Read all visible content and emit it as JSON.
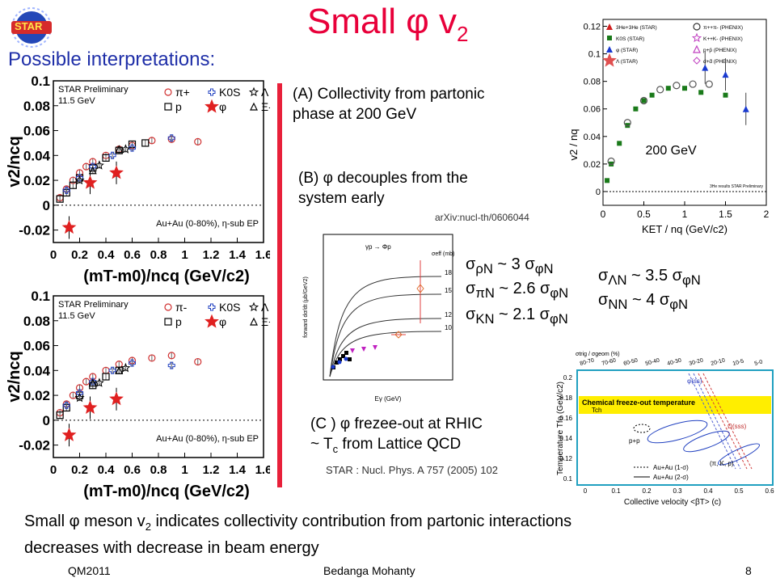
{
  "slide": {
    "title_main": "Small ",
    "title_phi": "φ",
    "title_v": " v",
    "title_sub": "2",
    "subtitle": "Possible interpretations:",
    "logo_text": "STAR"
  },
  "interpretations": {
    "a_line1": "(A) Collectivity from partonic",
    "a_line2": "phase at 200 GeV",
    "b_line1": "(B) φ decouples from the",
    "b_line2": "system early",
    "b_ref": "arXiv:nucl-th/0606044",
    "c_line1": "(C ) φ  frezee-out at RHIC",
    "c_line2_pre": "~ T",
    "c_line2_sub": "c",
    "c_line2_post": " from Lattice QCD",
    "c_ref": "STAR : Nucl. Phys. A 757 (2005) 102"
  },
  "cross_sections": {
    "rho": "σ",
    "rho_sub": "ρN",
    "rho_rest": " ~ 3 ",
    "pi_sub": "πN",
    "pi_rest": " ~ 2.6 ",
    "k_sub": "KN",
    "k_rest": " ~ 2.1 ",
    "phi_sub": "φN",
    "lam_sub": "ΛN",
    "lam_rest": " ~ 3.5 ",
    "nn_sub": "NN",
    "nn_rest": " ~ 4 "
  },
  "conclusion": {
    "line1_pre": "Small φ meson v",
    "line1_sub": "2",
    "line1_post": " indicates collectivity contribution from partonic interactions",
    "line2": "decreases with decrease in beam energy"
  },
  "footer": {
    "left": "QM2011",
    "center": "Bedanga Mohanty",
    "page": "8"
  },
  "chart_data": [
    {
      "type": "scatter",
      "ylabel": "v2/ncq",
      "xlabel": "(mT-m0)/ncq  (GeV/c2)",
      "xlim": [
        0,
        1.6
      ],
      "ylim": [
        -0.03,
        0.1
      ],
      "x_ticks": [
        "0",
        "0.2",
        "0.4",
        "0.6",
        "0.8",
        "1",
        "1.2",
        "1.4",
        "1.6"
      ],
      "y_ticks": [
        "0.1",
        "0.08",
        "0.06",
        "0.04",
        "0.02",
        "0",
        "-0.02"
      ],
      "texts": [
        "STAR Preliminary",
        "11.5 GeV",
        "Au+Au (0-80%), η-sub EP"
      ],
      "legend": [
        "π+",
        "K0S",
        "Λ",
        "p",
        "φ",
        "Ξ-"
      ],
      "series": [
        {
          "name": "π+",
          "values": [
            [
              0.05,
              0.006
            ],
            [
              0.1,
              0.013
            ],
            [
              0.15,
              0.02
            ],
            [
              0.2,
              0.026
            ],
            [
              0.25,
              0.031
            ],
            [
              0.3,
              0.035
            ],
            [
              0.4,
              0.04
            ],
            [
              0.5,
              0.045
            ],
            [
              0.6,
              0.048
            ],
            [
              0.75,
              0.052
            ],
            [
              0.9,
              0.053
            ],
            [
              1.1,
              0.051
            ]
          ]
        },
        {
          "name": "p",
          "values": [
            [
              0.05,
              0.005
            ],
            [
              0.1,
              0.01
            ],
            [
              0.15,
              0.016
            ],
            [
              0.2,
              0.022
            ],
            [
              0.3,
              0.03
            ],
            [
              0.4,
              0.038
            ],
            [
              0.5,
              0.044
            ],
            [
              0.6,
              0.049
            ],
            [
              0.7,
              0.05
            ]
          ]
        },
        {
          "name": "K0S",
          "values": [
            [
              0.1,
              0.012
            ],
            [
              0.2,
              0.022
            ],
            [
              0.3,
              0.031
            ],
            [
              0.45,
              0.04
            ],
            [
              0.6,
              0.046
            ],
            [
              0.9,
              0.054
            ]
          ]
        },
        {
          "name": "φ",
          "values": [
            [
              0.12,
              -0.018
            ],
            [
              0.28,
              0.018
            ],
            [
              0.48,
              0.026
            ]
          ]
        },
        {
          "name": "Λ",
          "values": [
            [
              0.2,
              0.02
            ],
            [
              0.35,
              0.032
            ],
            [
              0.55,
              0.045
            ]
          ]
        },
        {
          "name": "Ξ-",
          "values": [
            [
              0.3,
              0.028
            ],
            [
              0.5,
              0.045
            ]
          ]
        }
      ]
    },
    {
      "type": "scatter",
      "ylabel": "v2/ncq",
      "xlabel": "(mT-m0)/ncq  (GeV/c2)",
      "xlim": [
        0,
        1.6
      ],
      "ylim": [
        -0.03,
        0.1
      ],
      "x_ticks": [
        "0",
        "0.2",
        "0.4",
        "0.6",
        "0.8",
        "1",
        "1.2",
        "1.4",
        "1.6"
      ],
      "y_ticks": [
        "0.1",
        "0.08",
        "0.06",
        "0.04",
        "0.02",
        "0",
        "-0.02"
      ],
      "texts": [
        "STAR Preliminary",
        "11.5 GeV",
        "Au+Au (0-80%), η-sub EP"
      ],
      "legend": [
        "π-",
        "K0S",
        "Λ",
        "p",
        "φ",
        "Ξ+"
      ],
      "series": [
        {
          "name": "π-",
          "values": [
            [
              0.05,
              0.006
            ],
            [
              0.1,
              0.013
            ],
            [
              0.15,
              0.02
            ],
            [
              0.2,
              0.026
            ],
            [
              0.25,
              0.031
            ],
            [
              0.3,
              0.035
            ],
            [
              0.4,
              0.04
            ],
            [
              0.5,
              0.045
            ],
            [
              0.6,
              0.048
            ],
            [
              0.75,
              0.05
            ],
            [
              0.9,
              0.052
            ],
            [
              1.1,
              0.047
            ]
          ]
        },
        {
          "name": "p",
          "values": [
            [
              0.05,
              0.004
            ],
            [
              0.1,
              0.01
            ],
            [
              0.2,
              0.02
            ],
            [
              0.3,
              0.028
            ],
            [
              0.4,
              0.035
            ],
            [
              0.5,
              0.04
            ]
          ]
        },
        {
          "name": "K0S",
          "values": [
            [
              0.1,
              0.012
            ],
            [
              0.2,
              0.022
            ],
            [
              0.3,
              0.031
            ],
            [
              0.45,
              0.04
            ],
            [
              0.6,
              0.046
            ],
            [
              0.9,
              0.044
            ]
          ]
        },
        {
          "name": "φ",
          "values": [
            [
              0.12,
              -0.012
            ],
            [
              0.28,
              0.01
            ],
            [
              0.48,
              0.017
            ]
          ]
        },
        {
          "name": "Λ",
          "values": [
            [
              0.2,
              0.018
            ],
            [
              0.35,
              0.03
            ],
            [
              0.55,
              0.042
            ]
          ]
        },
        {
          "name": "Ξ+",
          "values": [
            [
              0.3,
              0.03
            ],
            [
              0.5,
              0.04
            ]
          ]
        }
      ]
    },
    {
      "type": "scatter",
      "ylabel": "v2 / nq",
      "xlabel": "KET / nq (GeV/c2)",
      "xlim": [
        0,
        2
      ],
      "ylim": [
        -0.01,
        0.125
      ],
      "x_ticks": [
        "0",
        "0.5",
        "1",
        "1.5",
        "2"
      ],
      "y_ticks": [
        "0",
        "0.02",
        "0.04",
        "0.06",
        "0.08",
        "0.1",
        "0.12"
      ],
      "texts": [
        "200 GeV",
        "3He results STAR Preliminary"
      ],
      "legend": [
        "3He+3He (STAR)",
        "K0S (STAR)",
        "φ (STAR)",
        "Λ (STAR)",
        "π++π- (PHENIX)",
        "K++K- (PHENIX)",
        "p+p̄ (PHENIX)",
        "d+d̄ (PHENIX)"
      ],
      "series": [
        {
          "name": "STAR",
          "values": [
            [
              0.05,
              0.008
            ],
            [
              0.1,
              0.02
            ],
            [
              0.2,
              0.035
            ],
            [
              0.3,
              0.048
            ],
            [
              0.4,
              0.06
            ],
            [
              0.5,
              0.066
            ],
            [
              0.6,
              0.07
            ],
            [
              0.8,
              0.075
            ],
            [
              1.0,
              0.075
            ],
            [
              1.2,
              0.072
            ],
            [
              1.5,
              0.07
            ]
          ]
        },
        {
          "name": "φ (STAR)",
          "values": [
            [
              1.25,
              0.09
            ],
            [
              1.5,
              0.085
            ],
            [
              1.75,
              0.06
            ]
          ]
        },
        {
          "name": "PHENIX",
          "values": [
            [
              0.1,
              0.022
            ],
            [
              0.3,
              0.05
            ],
            [
              0.5,
              0.066
            ],
            [
              0.7,
              0.074
            ],
            [
              0.9,
              0.077
            ],
            [
              1.1,
              0.078
            ],
            [
              1.3,
              0.078
            ]
          ]
        }
      ]
    },
    {
      "type": "line",
      "ylabel": "forward dσ/dt (μb/GeV2)",
      "xlabel": "Eγ (GeV)",
      "texts": [
        "γp → Φp",
        "σeff (mb)"
      ],
      "curve_labels": [
        "18",
        "15",
        "12",
        "10"
      ]
    },
    {
      "type": "scatter",
      "ylabel": "Temperature Tfo (GeV/c2)",
      "xlabel": "Collective velocity <βT> (c)",
      "top_axis_label": "σtrig / σgeom (%)",
      "top_ticks": [
        "80-70",
        "70-60",
        "60-50",
        "50-40",
        "40-30",
        "30-20",
        "20-10",
        "10-5",
        "5-0"
      ],
      "x_ticks": [
        "0",
        "0.1",
        "0.2",
        "0.3",
        "0.4",
        "0.5",
        "0.6"
      ],
      "y_ticks": [
        "0.2",
        "0.18",
        "0.16",
        "0.14",
        "0.12",
        "0.1"
      ],
      "band_label": "Chemical freeze-out temperature",
      "band_sub": "Tch",
      "texts": [
        "φ(ss)",
        "Ω(sss)",
        "p+p",
        "(π, K, p)"
      ],
      "legend": [
        "Au+Au (1-σ)",
        "Au+Au (2-σ)"
      ]
    }
  ]
}
